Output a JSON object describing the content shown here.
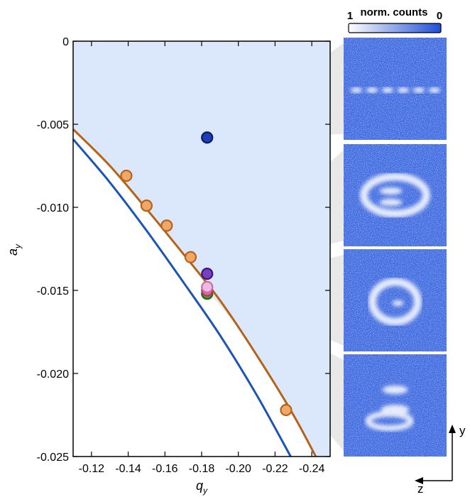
{
  "chart_data": {
    "type": "scatter",
    "title": "",
    "xlabel_main": "q",
    "xlabel_sub": "y",
    "ylabel_main": "a",
    "ylabel_sub": "y",
    "xlim": [
      -0.11,
      -0.25
    ],
    "ylim": [
      -0.025,
      0
    ],
    "xticks": [
      -0.12,
      -0.14,
      -0.16,
      -0.18,
      -0.2,
      -0.22,
      -0.24
    ],
    "xtick_labels": [
      "-0.12",
      "-0.14",
      "-0.16",
      "-0.18",
      "-0.20",
      "-0.22",
      "-0.24"
    ],
    "yticks": [
      0,
      -0.005,
      -0.01,
      -0.015,
      -0.02,
      -0.025
    ],
    "ytick_labels": [
      "0",
      "-0.005",
      "-0.010",
      "-0.015",
      "-0.020",
      "-0.025"
    ],
    "region_color": "#dbe8fb",
    "lines": [
      {
        "color": "#b5621a",
        "x": [
          -0.11,
          -0.13,
          -0.15,
          -0.17,
          -0.19,
          -0.21,
          -0.23,
          -0.245
        ],
        "y": [
          -0.0053,
          -0.0075,
          -0.0101,
          -0.0128,
          -0.0156,
          -0.0189,
          -0.0225,
          -0.0256
        ]
      },
      {
        "color": "#1b55b3",
        "x": [
          -0.11,
          -0.13,
          -0.15,
          -0.17,
          -0.19,
          -0.21,
          -0.229
        ],
        "y": [
          -0.0059,
          -0.0085,
          -0.0114,
          -0.0145,
          -0.0177,
          -0.0213,
          -0.0251
        ]
      }
    ],
    "orange_points": {
      "color": "#f0a868",
      "edge": "#b5621a",
      "x": [
        -0.139,
        -0.15,
        -0.161,
        -0.174,
        -0.226
      ],
      "y": [
        -0.0081,
        -0.0099,
        -0.0111,
        -0.013,
        -0.0222
      ]
    },
    "highlight_points": [
      {
        "x": -0.183,
        "y": -0.0058,
        "fill": "#1e3fb0",
        "edge": "#0a1a66"
      },
      {
        "x": -0.183,
        "y": -0.014,
        "fill": "#7a3fbf",
        "edge": "#3a1780"
      },
      {
        "x": -0.183,
        "y": -0.0152,
        "fill": "#4a9a2a",
        "edge": "#2a6018"
      },
      {
        "x": -0.183,
        "y": -0.015,
        "fill": "#e06a9a",
        "edge": "#b03a6a"
      },
      {
        "x": -0.183,
        "y": -0.0148,
        "fill": "#f4b8e0",
        "edge": "#c070a8"
      }
    ],
    "colorbar": {
      "label": "norm. counts",
      "min_label": "1",
      "max_label": "0",
      "color_low": "#ffffff",
      "color_high": "#1f4fd8"
    },
    "panels": [
      {
        "pattern": "dots-line",
        "points_to": 0
      },
      {
        "pattern": "ring-with-dots",
        "points_to": 1
      },
      {
        "pattern": "ring",
        "points_to": 4
      },
      {
        "pattern": "two-dots",
        "points_to": 3
      }
    ],
    "panel_bg": "#3f6ae0",
    "connector_color": "#e8e8e8",
    "axes_indicator": {
      "up": "y",
      "left": "z"
    }
  }
}
